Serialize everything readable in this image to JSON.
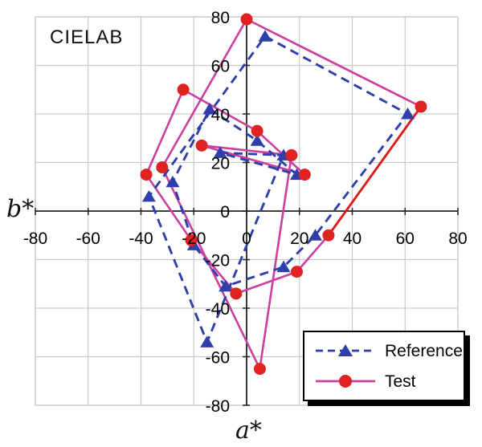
{
  "title": "CIELAB",
  "axes": {
    "x_label": "a*",
    "y_label": "b*",
    "x_ticks": [
      -80,
      -60,
      -40,
      -20,
      0,
      20,
      40,
      60,
      80
    ],
    "y_ticks": [
      80,
      60,
      40,
      20,
      0,
      -20,
      -40,
      -60,
      -80
    ]
  },
  "legend": {
    "items": [
      {
        "label": "Reference"
      },
      {
        "label": "Test"
      }
    ]
  },
  "chart_data": {
    "type": "line",
    "title": "CIELAB",
    "xlabel": "a*",
    "ylabel": "b*",
    "xlim": [
      -80,
      80
    ],
    "ylim": [
      -80,
      80
    ],
    "grid": true,
    "legend_position": "bottom-right",
    "colors": {
      "grid": "#c9c9c9",
      "axis": "#222222",
      "reference_blue": "#2f3eab",
      "test_pink": "#cb3fa0",
      "test_marker_red": "#e02222",
      "red_segment": "#e01818",
      "text": "#000000"
    },
    "series": [
      {
        "name": "Reference",
        "style": "dashed",
        "marker": "triangle",
        "closed": true,
        "points": [
          [
            7,
            72
          ],
          [
            61,
            40
          ],
          [
            26,
            -10
          ],
          [
            14,
            -23
          ],
          [
            -8,
            -31
          ],
          [
            -20,
            -14
          ],
          [
            -28,
            12
          ],
          [
            -14,
            42
          ],
          [
            4,
            29
          ],
          [
            19,
            15
          ],
          [
            -10,
            24
          ],
          [
            14,
            23
          ],
          [
            -15,
            -54
          ],
          [
            -37,
            6
          ]
        ]
      },
      {
        "name": "Test",
        "style": "solid",
        "marker": "circle",
        "closed": true,
        "points": [
          [
            0,
            79
          ],
          [
            66,
            43
          ],
          [
            31,
            -10
          ],
          [
            19,
            -25
          ],
          [
            -4,
            -34
          ],
          [
            -21,
            -12
          ],
          [
            -38,
            15
          ],
          [
            -24,
            50
          ],
          [
            4,
            33
          ],
          [
            22,
            15
          ],
          [
            -17,
            27
          ],
          [
            17,
            23
          ],
          [
            5,
            -65
          ],
          [
            -32,
            18
          ]
        ],
        "red_segment": [
          [
            66,
            43
          ],
          [
            31,
            -10
          ]
        ]
      }
    ]
  }
}
